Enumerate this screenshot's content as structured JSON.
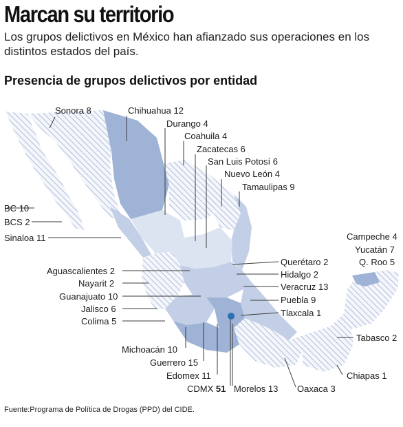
{
  "headline": "Marcan su territorio",
  "deck": "Los grupos delictivos en México han afianzado sus operaciones en los distintos estados del país.",
  "subhead": "Presencia de grupos delictivos por entidad",
  "source": "Fuente:Programa de Política de Drogas (PPD) del CIDE.",
  "colors": {
    "dark": "#9fb3d6",
    "mid": "#c2cfe6",
    "light": "#dde4f1",
    "hatch": "#aebdd9",
    "accent": "#2c6fb5"
  },
  "states": [
    {
      "name": "Sonora",
      "count": 8
    },
    {
      "name": "Chihuahua",
      "count": 12
    },
    {
      "name": "Durango",
      "count": 4
    },
    {
      "name": "Coahuila",
      "count": 4
    },
    {
      "name": "Zacatecas",
      "count": 6
    },
    {
      "name": "San Luis Potosí",
      "count": 6
    },
    {
      "name": "Nuevo León",
      "count": 4
    },
    {
      "name": "Tamaulipas",
      "count": 9
    },
    {
      "name": "BC",
      "count": 10
    },
    {
      "name": "BCS",
      "count": 2
    },
    {
      "name": "Sinaloa",
      "count": 11
    },
    {
      "name": "Aguascalientes",
      "count": 2
    },
    {
      "name": "Nayarit",
      "count": 2
    },
    {
      "name": "Guanajuato",
      "count": 10
    },
    {
      "name": "Jalisco",
      "count": 6
    },
    {
      "name": "Colima",
      "count": 5
    },
    {
      "name": "Michoacán",
      "count": 10
    },
    {
      "name": "Guerrero",
      "count": 15
    },
    {
      "name": "Edomex",
      "count": 11
    },
    {
      "name": "CDMX",
      "count": 51
    },
    {
      "name": "Morelos",
      "count": 13
    },
    {
      "name": "Oaxaca",
      "count": 3
    },
    {
      "name": "Chiapas",
      "count": 1
    },
    {
      "name": "Tabasco",
      "count": 2
    },
    {
      "name": "Campeche",
      "count": 4
    },
    {
      "name": "Yucatán",
      "count": 7
    },
    {
      "name": "Q. Roo",
      "count": 5
    },
    {
      "name": "Querétaro",
      "count": 2
    },
    {
      "name": "Hidalgo",
      "count": 2
    },
    {
      "name": "Veracruz",
      "count": 13
    },
    {
      "name": "Puebla",
      "count": 9
    },
    {
      "name": "Tlaxcala",
      "count": 1
    }
  ]
}
